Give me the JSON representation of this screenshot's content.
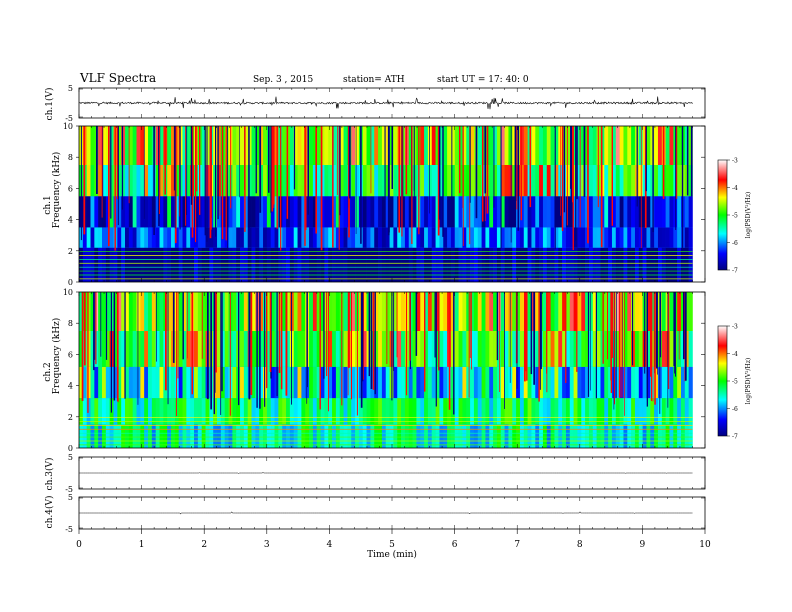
{
  "header": {
    "title": "VLF  Spectra",
    "date": "Sep. 3  , 2015",
    "station": "station= ATH",
    "start": "start  UT  =   17: 40: 0"
  },
  "chart_data": [
    {
      "type": "line",
      "panel": "ch1-waveform",
      "ylabel": "ch.1(V)",
      "yticks": [
        "5",
        "-5"
      ],
      "ylim": [
        -5,
        5
      ],
      "xlim": [
        0,
        10
      ],
      "description_values": {
        "baseline": 0,
        "typical_amplitude": 1,
        "data_end_min": 9.8
      }
    },
    {
      "type": "heatmap",
      "panel": "ch1-spectrogram",
      "ylabel_top": "ch.1",
      "ylabel": "Frequency  (kHz)",
      "yticks": [
        "0",
        "2",
        "4",
        "6",
        "8",
        "10"
      ],
      "ylim": [
        0,
        10
      ],
      "xlim": [
        0,
        10
      ],
      "data_end_min": 9.8,
      "colorbar": {
        "label": "log(PSD(V²/Hz)",
        "ticks": [
          "-3",
          "-4",
          "-5",
          "-6",
          "-7"
        ],
        "range": [
          -7,
          -3
        ]
      },
      "bands": [
        {
          "fmin": 0,
          "fmax": 2.2,
          "level": -7
        },
        {
          "fmin": 2.2,
          "fmax": 3.5,
          "level": -6.3
        },
        {
          "fmin": 3.5,
          "fmax": 5.5,
          "level": -6.6
        },
        {
          "fmin": 5.5,
          "fmax": 7.5,
          "level": -5.2
        },
        {
          "fmin": 7.5,
          "fmax": 10,
          "level": -4.9
        }
      ]
    },
    {
      "type": "heatmap",
      "panel": "ch2-spectrogram",
      "ylabel_top": "ch.2",
      "ylabel": "Frequency  (kHz)",
      "yticks": [
        "0",
        "2",
        "4",
        "6",
        "8",
        "10"
      ],
      "ylim": [
        0,
        10
      ],
      "xlim": [
        0,
        10
      ],
      "data_end_min": 9.8,
      "colorbar": {
        "label": "log(PSD(V²/Hz)",
        "ticks": [
          "-3",
          "-4",
          "-5",
          "-6",
          "-7"
        ],
        "range": [
          -7,
          -3
        ]
      },
      "bands": [
        {
          "fmin": 0,
          "fmax": 1.5,
          "level": -5.5
        },
        {
          "fmin": 1.5,
          "fmax": 3.2,
          "level": -5.3
        },
        {
          "fmin": 3.2,
          "fmax": 5.2,
          "level": -5.8
        },
        {
          "fmin": 5.2,
          "fmax": 7.5,
          "level": -5.1
        },
        {
          "fmin": 7.5,
          "fmax": 10,
          "level": -4.8
        }
      ]
    },
    {
      "type": "line",
      "panel": "ch3-waveform",
      "ylabel": "ch.3(V)",
      "yticks": [
        "5",
        "-5"
      ],
      "ylim": [
        -5,
        5
      ],
      "xlim": [
        0,
        10
      ],
      "description_values": {
        "baseline": 0,
        "typical_amplitude": 0,
        "data_end_min": 9.8
      }
    },
    {
      "type": "line",
      "panel": "ch4-waveform",
      "ylabel": "ch.4(V)",
      "yticks": [
        "5",
        "-5"
      ],
      "ylim": [
        -5,
        5
      ],
      "xlim": [
        0,
        10
      ],
      "description_values": {
        "baseline": 0,
        "typical_amplitude": 0,
        "data_end_min": 9.8
      }
    }
  ],
  "xaxis": {
    "label": "Time  (min)",
    "ticks": [
      "0",
      "1",
      "2",
      "3",
      "4",
      "5",
      "6",
      "7",
      "8",
      "9",
      "10"
    ]
  }
}
